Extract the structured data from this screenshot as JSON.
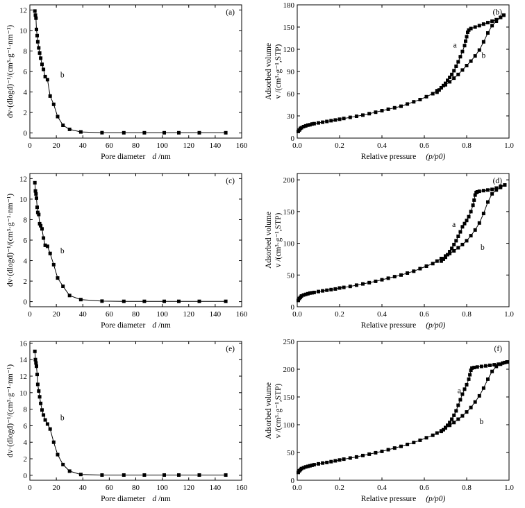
{
  "chart_data": [
    {
      "id": "a",
      "type": "line",
      "panel_label": "(a)",
      "xlabel": "Pore diameter",
      "xlabel_var": "d",
      "xlabel_unit": " /nm",
      "ylabel": "dv·(dlogd)⁻¹/(cm³·g⁻¹·nm⁻¹)",
      "xlim": [
        0,
        160
      ],
      "ylim": [
        -0.5,
        12.5
      ],
      "xticks": [
        0,
        20,
        40,
        60,
        80,
        100,
        120,
        140,
        160
      ],
      "yticks": [
        0,
        2,
        4,
        6,
        8,
        10,
        12
      ],
      "series": [
        {
          "name": "b",
          "x": [
            3.8,
            4.2,
            4.6,
            5.0,
            5.5,
            6.0,
            6.7,
            7.4,
            8.2,
            9.2,
            10.3,
            11.6,
            13.3,
            15.3,
            18.0,
            21.0,
            25.0,
            30.0,
            38.5,
            54.5,
            71.0,
            86.5,
            101.5,
            112.5,
            128.0,
            148.0
          ],
          "y": [
            11.9,
            11.5,
            11.2,
            10.1,
            9.5,
            8.9,
            8.3,
            7.8,
            7.3,
            6.7,
            6.2,
            5.5,
            5.2,
            3.6,
            2.8,
            1.6,
            0.75,
            0.35,
            0.1,
            0.03,
            0.02,
            0.02,
            0.02,
            0.02,
            0.02,
            0.02
          ]
        }
      ],
      "annotations": [
        {
          "text": "b",
          "x": 24.5,
          "y": 5.7
        }
      ]
    },
    {
      "id": "b",
      "type": "line",
      "panel_label": "(b)",
      "xlabel": "Relative pressure",
      "xlabel_math": "(p/p0)",
      "ylabel": "Adsorbed volume",
      "ylabel_math": "v /(cm³·g⁻¹,STP)",
      "xlim": [
        0,
        1.0
      ],
      "ylim": [
        0,
        180
      ],
      "xticks": [
        0.0,
        0.2,
        0.4,
        0.6,
        0.8,
        1.0
      ],
      "xtick_labels": [
        "0.0",
        "0.2",
        "0.4",
        "0.6",
        "0.8",
        "1.0"
      ],
      "yticks": [
        0,
        30,
        60,
        90,
        120,
        150,
        180
      ],
      "series": [
        {
          "name": "b",
          "x": [
            0.005,
            0.01,
            0.015,
            0.02,
            0.03,
            0.04,
            0.05,
            0.06,
            0.07,
            0.08,
            0.1,
            0.12,
            0.14,
            0.16,
            0.18,
            0.2,
            0.22,
            0.25,
            0.28,
            0.31,
            0.34,
            0.37,
            0.4,
            0.43,
            0.46,
            0.49,
            0.52,
            0.55,
            0.58,
            0.61,
            0.64,
            0.66,
            0.68,
            0.7,
            0.72,
            0.74,
            0.76,
            0.78,
            0.8,
            0.82,
            0.84,
            0.86,
            0.88,
            0.9,
            0.92,
            0.94,
            0.96,
            0.975
          ],
          "y": [
            9,
            11,
            13,
            14,
            15.5,
            16.5,
            17.5,
            18,
            19,
            19.5,
            20.5,
            21.5,
            22.5,
            23.5,
            24.5,
            25.5,
            26.5,
            28,
            29.5,
            31,
            33,
            35,
            37,
            39,
            41,
            43,
            46,
            49,
            52,
            56,
            60,
            64,
            68,
            72,
            76,
            81,
            86,
            92,
            98,
            104,
            111,
            119,
            130,
            142,
            152,
            158,
            163,
            166
          ]
        },
        {
          "name": "a",
          "x": [
            0.975,
            0.96,
            0.94,
            0.92,
            0.9,
            0.88,
            0.86,
            0.84,
            0.82,
            0.81,
            0.805,
            0.8,
            0.795,
            0.79,
            0.78,
            0.77,
            0.76,
            0.75,
            0.74,
            0.73,
            0.72,
            0.71,
            0.7,
            0.69,
            0.68,
            0.67,
            0.66
          ],
          "y": [
            166,
            163,
            160,
            158,
            156,
            154,
            152,
            150,
            148,
            146,
            143,
            137,
            131,
            125,
            117,
            110,
            103,
            97,
            91,
            86,
            82,
            78,
            74,
            71,
            68,
            65,
            62
          ]
        }
      ],
      "annotations": [
        {
          "text": "a",
          "x": 0.745,
          "y": 126
        },
        {
          "text": "b",
          "x": 0.88,
          "y": 112
        }
      ]
    },
    {
      "id": "c",
      "type": "line",
      "panel_label": "(c)",
      "xlabel": "Pore diameter",
      "xlabel_var": "d",
      "xlabel_unit": " /nm",
      "ylabel": "dv·(dlogd)⁻¹/(cm³·g⁻¹·nm⁻¹)",
      "xlim": [
        0,
        160
      ],
      "ylim": [
        -0.5,
        12.5
      ],
      "xticks": [
        0,
        20,
        40,
        60,
        80,
        100,
        120,
        140,
        160
      ],
      "yticks": [
        0,
        2,
        4,
        6,
        8,
        10,
        12
      ],
      "series": [
        {
          "name": "b",
          "x": [
            3.8,
            4.2,
            4.6,
            5.0,
            5.5,
            6.0,
            6.7,
            7.4,
            8.2,
            9.2,
            10.3,
            11.6,
            13.3,
            15.3,
            18.0,
            21.0,
            25.0,
            30.0,
            38.5,
            54.5,
            71.0,
            86.5,
            101.5,
            112.5,
            128.0,
            148.0
          ],
          "y": [
            11.6,
            10.8,
            10.5,
            10.1,
            9.2,
            8.7,
            8.5,
            7.6,
            7.4,
            7.1,
            6.2,
            5.5,
            5.4,
            4.7,
            3.6,
            2.3,
            1.5,
            0.6,
            0.2,
            0.05,
            0.03,
            0.03,
            0.03,
            0.03,
            0.03,
            0.03
          ]
        }
      ],
      "annotations": [
        {
          "text": "b",
          "x": 24.5,
          "y": 5.0
        }
      ]
    },
    {
      "id": "d",
      "type": "line",
      "panel_label": "(d)",
      "xlabel": "Relative pressure",
      "xlabel_math": "(p/p0)",
      "ylabel": "Adsorbed volume",
      "ylabel_math": "v /(cm³·g⁻¹,STP)",
      "xlim": [
        0,
        1.0
      ],
      "ylim": [
        0,
        210
      ],
      "xticks": [
        0.0,
        0.2,
        0.4,
        0.6,
        0.8,
        1.0
      ],
      "xtick_labels": [
        "0.0",
        "0.2",
        "0.4",
        "0.6",
        "0.8",
        "1.0"
      ],
      "yticks": [
        0,
        50,
        100,
        150,
        200
      ],
      "series": [
        {
          "name": "b",
          "x": [
            0.005,
            0.01,
            0.015,
            0.02,
            0.03,
            0.04,
            0.05,
            0.06,
            0.07,
            0.08,
            0.1,
            0.12,
            0.14,
            0.16,
            0.18,
            0.2,
            0.22,
            0.25,
            0.28,
            0.31,
            0.34,
            0.37,
            0.4,
            0.43,
            0.46,
            0.49,
            0.52,
            0.55,
            0.58,
            0.61,
            0.64,
            0.66,
            0.68,
            0.7,
            0.72,
            0.74,
            0.76,
            0.78,
            0.8,
            0.82,
            0.84,
            0.86,
            0.88,
            0.9,
            0.92,
            0.94,
            0.96,
            0.98
          ],
          "y": [
            10,
            13,
            15,
            17,
            18.5,
            19.5,
            20.5,
            21.5,
            22,
            22.5,
            24,
            25,
            26,
            27,
            28,
            29.5,
            30.5,
            32,
            34,
            36,
            38,
            40,
            42.5,
            45,
            47.5,
            50,
            53,
            56,
            60,
            64,
            68,
            72,
            76,
            80,
            84,
            88,
            93,
            98,
            104,
            112,
            121,
            132,
            147,
            165,
            178,
            184,
            188,
            192
          ]
        },
        {
          "name": "a",
          "x": [
            0.98,
            0.96,
            0.94,
            0.92,
            0.9,
            0.88,
            0.86,
            0.85,
            0.845,
            0.84,
            0.835,
            0.83,
            0.82,
            0.81,
            0.8,
            0.79,
            0.78,
            0.77,
            0.76,
            0.75,
            0.74,
            0.73,
            0.72,
            0.71,
            0.7,
            0.69,
            0.68
          ],
          "y": [
            192,
            190,
            187,
            185,
            184,
            183,
            182,
            181,
            180,
            176,
            168,
            160,
            150,
            142,
            136,
            131,
            126,
            118,
            111,
            104,
            98,
            92,
            87,
            82,
            78,
            75,
            72
          ]
        }
      ],
      "annotations": [
        {
          "text": "a",
          "x": 0.74,
          "y": 130
        },
        {
          "text": "b",
          "x": 0.875,
          "y": 94
        }
      ]
    },
    {
      "id": "e",
      "type": "line",
      "panel_label": "(e)",
      "xlabel": "Pore diameter",
      "xlabel_var": "d",
      "xlabel_unit": " /nm",
      "ylabel": "dv·(dlogd)⁻¹/(cm³·g⁻¹·nm⁻¹)",
      "xlim": [
        0,
        160
      ],
      "ylim": [
        -0.6,
        16.2
      ],
      "xticks": [
        0,
        20,
        40,
        60,
        80,
        100,
        120,
        140,
        160
      ],
      "yticks": [
        0,
        2,
        4,
        6,
        8,
        10,
        12,
        14,
        16
      ],
      "series": [
        {
          "name": "b",
          "x": [
            3.8,
            4.2,
            4.6,
            5.0,
            5.5,
            6.0,
            6.7,
            7.4,
            8.2,
            9.2,
            10.3,
            11.6,
            13.3,
            15.3,
            18.0,
            21.0,
            25.0,
            30.0,
            38.5,
            54.5,
            71.0,
            86.5,
            101.5,
            112.5,
            128.0,
            148.0
          ],
          "y": [
            15.0,
            14.0,
            13.6,
            13.2,
            12.2,
            11.0,
            10.2,
            9.5,
            8.7,
            7.9,
            7.3,
            6.7,
            6.2,
            5.6,
            4.0,
            2.5,
            1.3,
            0.5,
            0.1,
            0.03,
            0.03,
            0.03,
            0.03,
            0.03,
            0.03,
            0.03
          ]
        }
      ],
      "annotations": [
        {
          "text": "b",
          "x": 24.5,
          "y": 7.0
        }
      ]
    },
    {
      "id": "f",
      "type": "line",
      "panel_label": "(f)",
      "xlabel": "Relative pressure",
      "xlabel_math": "(p/p0)",
      "ylabel": "Adsorbed volume",
      "ylabel_math": "v /(cm³·g⁻¹,STP)",
      "xlim": [
        0,
        1.0
      ],
      "ylim": [
        0,
        250
      ],
      "xticks": [
        0.0,
        0.2,
        0.4,
        0.6,
        0.8,
        1.0
      ],
      "xtick_labels": [
        "0.0",
        "0.2",
        "0.4",
        "0.6",
        "0.8",
        "1.0"
      ],
      "yticks": [
        0,
        50,
        100,
        150,
        200,
        250
      ],
      "series": [
        {
          "name": "b",
          "x": [
            0.005,
            0.01,
            0.015,
            0.02,
            0.03,
            0.04,
            0.05,
            0.06,
            0.07,
            0.08,
            0.1,
            0.12,
            0.14,
            0.16,
            0.18,
            0.2,
            0.22,
            0.25,
            0.28,
            0.31,
            0.34,
            0.37,
            0.4,
            0.43,
            0.46,
            0.49,
            0.52,
            0.55,
            0.58,
            0.61,
            0.64,
            0.66,
            0.68,
            0.7,
            0.72,
            0.74,
            0.76,
            0.78,
            0.8,
            0.82,
            0.84,
            0.86,
            0.88,
            0.9,
            0.92,
            0.94,
            0.96,
            0.98,
            0.99
          ],
          "y": [
            14,
            17,
            19,
            21,
            22.5,
            24,
            25,
            26,
            27,
            28,
            29.5,
            31,
            32,
            33.5,
            35,
            36.5,
            38,
            40,
            42,
            44.5,
            47,
            49.5,
            52,
            55,
            58,
            61,
            64.5,
            68,
            72,
            76.5,
            81,
            85,
            89,
            94,
            99,
            104,
            110,
            116,
            123,
            131,
            141,
            152,
            166,
            182,
            196,
            205,
            209,
            212,
            213
          ]
        },
        {
          "name": "a",
          "x": [
            0.99,
            0.97,
            0.95,
            0.93,
            0.91,
            0.89,
            0.87,
            0.85,
            0.835,
            0.825,
            0.82,
            0.815,
            0.81,
            0.8,
            0.79,
            0.78,
            0.77,
            0.76,
            0.75,
            0.74,
            0.73,
            0.72,
            0.71,
            0.7,
            0.69,
            0.68
          ],
          "y": [
            213,
            211,
            209,
            208,
            207,
            206,
            205,
            204,
            203,
            202,
            198,
            190,
            182,
            172,
            164,
            155,
            145,
            135,
            125,
            117,
            110,
            104,
            99,
            95,
            91,
            88
          ]
        }
      ],
      "annotations": [
        {
          "text": "a",
          "x": 0.765,
          "y": 162
        },
        {
          "text": "b",
          "x": 0.87,
          "y": 106
        }
      ]
    }
  ]
}
